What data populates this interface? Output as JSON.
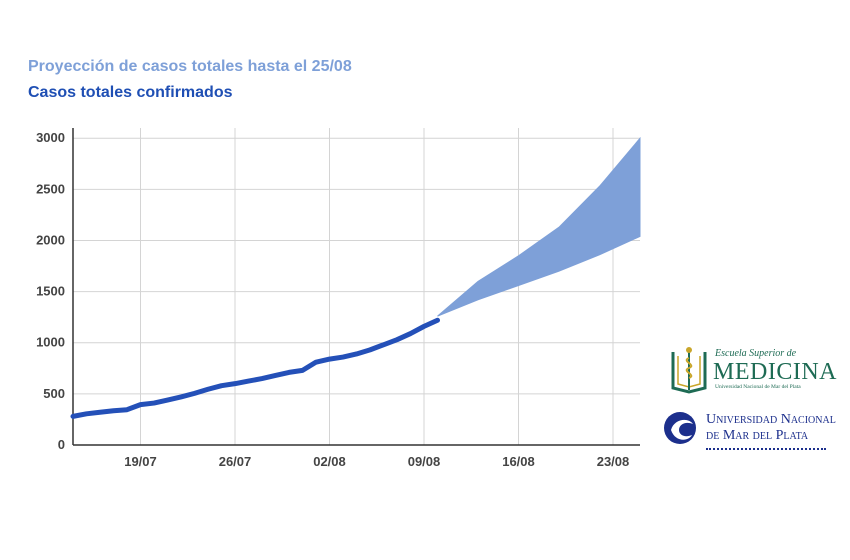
{
  "chart_data": {
    "type": "line",
    "subtitle": "Proyección de casos totales hasta el 25/08",
    "title": "Casos totales confirmados",
    "x_start": "2020-07-14",
    "x_end": "2020-08-25",
    "x_ticks": [
      "19/07",
      "26/07",
      "02/08",
      "09/08",
      "16/08",
      "23/08"
    ],
    "y_ticks": [
      0,
      500,
      1000,
      1500,
      2000,
      2500,
      3000
    ],
    "ylim": [
      0,
      3100
    ],
    "grid": true,
    "series": [
      {
        "name": "Casos totales confirmados",
        "color": "#2450b8",
        "x": [
          "2020-07-14",
          "2020-07-15",
          "2020-07-16",
          "2020-07-17",
          "2020-07-18",
          "2020-07-19",
          "2020-07-20",
          "2020-07-21",
          "2020-07-22",
          "2020-07-23",
          "2020-07-24",
          "2020-07-25",
          "2020-07-26",
          "2020-07-27",
          "2020-07-28",
          "2020-07-29",
          "2020-07-30",
          "2020-07-31",
          "2020-08-01",
          "2020-08-02",
          "2020-08-03",
          "2020-08-04",
          "2020-08-05",
          "2020-08-06",
          "2020-08-07",
          "2020-08-08",
          "2020-08-09",
          "2020-08-10"
        ],
        "y": [
          280,
          305,
          320,
          335,
          345,
          395,
          410,
          440,
          470,
          505,
          545,
          580,
          600,
          625,
          650,
          680,
          710,
          730,
          810,
          840,
          860,
          890,
          930,
          980,
          1030,
          1090,
          1160,
          1220
        ]
      },
      {
        "name": "Proyección de casos totales hasta el 25/08",
        "color": "#7ea0d8",
        "type": "band",
        "x": [
          "2020-08-10",
          "2020-08-13",
          "2020-08-16",
          "2020-08-19",
          "2020-08-22",
          "2020-08-25"
        ],
        "low": [
          1260,
          1420,
          1560,
          1700,
          1860,
          2040
        ],
        "high": [
          1260,
          1600,
          1850,
          2130,
          2530,
          3000
        ]
      }
    ]
  },
  "logos": {
    "escuela": {
      "line1": "Escuela Superior de",
      "line2": "MEDICINA",
      "line3": "Universidad Nacional de Mar del Plata",
      "color": "#1e6b54"
    },
    "universidad": {
      "line1": "Universidad Nacional",
      "line2": "de Mar del Plata",
      "color": "#1c2f8c"
    }
  }
}
